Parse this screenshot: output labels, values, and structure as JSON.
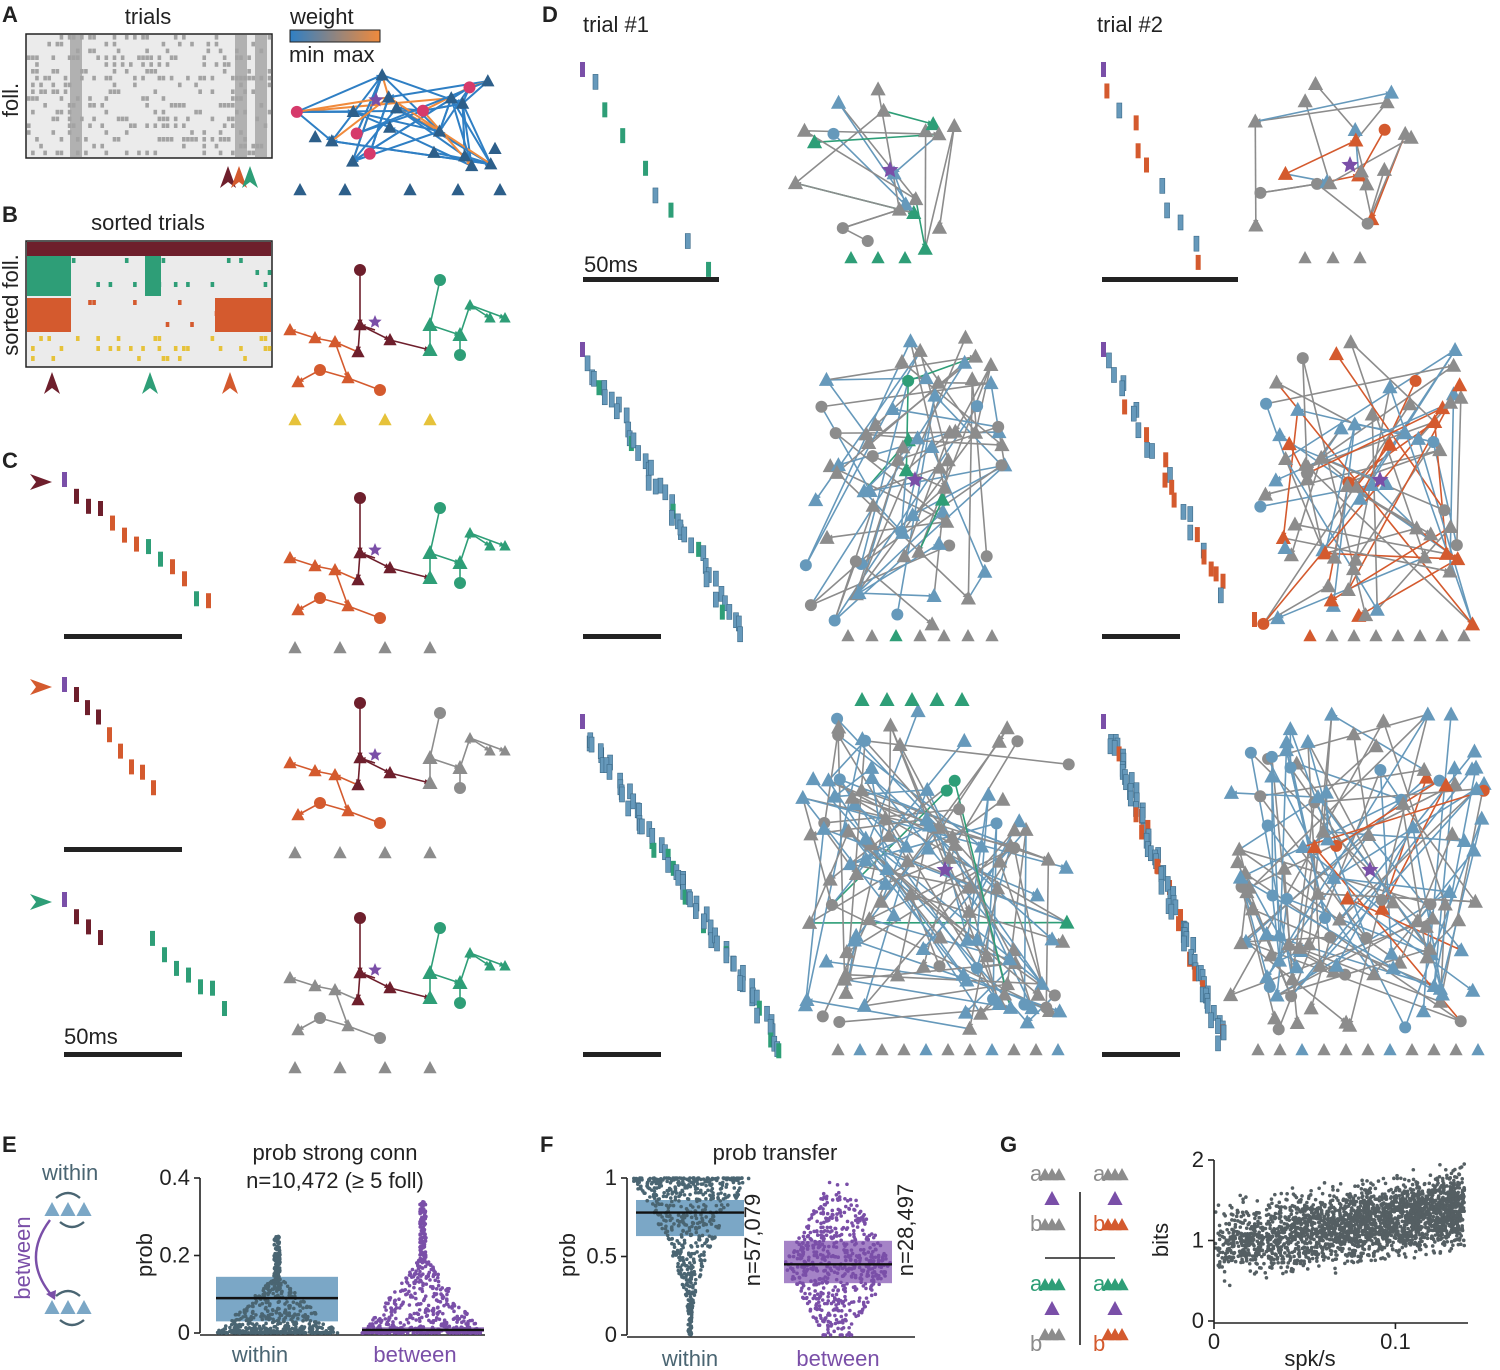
{
  "colors": {
    "gray": "#8c8c8c",
    "raster_bg": "#ebebeb",
    "raster_gray": "#a3a3a3",
    "purple": "#7a4fa8",
    "blue": "#6699bb",
    "green": "#2e9e77",
    "orange": "#d45a2e",
    "maroon": "#6e1f2c",
    "yellow": "#e6c23a",
    "pink": "#d63a6b",
    "dark_slate": "#4a6572",
    "box_blue": "#7ba7c6",
    "box_purple": "#a583c7",
    "weight_min": "#2f7fc4",
    "weight_max": "#f08a3c"
  },
  "panels": {
    "A": {
      "label": "A",
      "raster_title": "trials",
      "y_label": "foll.",
      "colorbar_title": "weight",
      "colorbar_min": "min",
      "colorbar_max": "max"
    },
    "B": {
      "label": "B",
      "raster_title": "sorted trials",
      "y_label": "sorted foll."
    },
    "C": {
      "label": "C",
      "scalebar_label": "50ms"
    },
    "D": {
      "label": "D",
      "col1_title": "trial #1",
      "col2_title": "trial #2",
      "scalebar_label": "50ms"
    },
    "E": {
      "label": "E",
      "diagram_within": "within",
      "diagram_between": "between",
      "title_line1": "prob strong conn",
      "title_line2": "n=10,472 (≥ 5 foll)",
      "ylabel": "prob",
      "cat_within": "within",
      "cat_between": "between"
    },
    "F": {
      "label": "F",
      "title": "prob transfer",
      "ylabel": "prob",
      "cat_within": "within",
      "cat_between": "between",
      "n_within": "n=57,079",
      "n_between": "n=28,497"
    },
    "G": {
      "label": "G",
      "xlabel": "spk/s",
      "ylabel": "bits",
      "letter_a": "a",
      "letter_b": "b"
    }
  },
  "chart_data": [
    {
      "type": "box",
      "panel": "E",
      "title": "prob strong conn",
      "subtitle": "n=10,472 (≥ 5 foll)",
      "ylabel": "prob",
      "categories": [
        "within",
        "between"
      ],
      "ylim": [
        0,
        0.4
      ],
      "yticks": [
        "0",
        "0.2",
        "0.4"
      ],
      "series": [
        {
          "name": "within",
          "q1": 0.03,
          "median": 0.09,
          "q3": 0.145,
          "max_outlier": 0.25
        },
        {
          "name": "between",
          "q1": 0.003,
          "median": 0.008,
          "q3": 0.015,
          "max_outlier": 0.34
        }
      ]
    },
    {
      "type": "box",
      "panel": "F",
      "title": "prob transfer",
      "ylabel": "prob",
      "categories": [
        "within",
        "between"
      ],
      "ylim": [
        0,
        1
      ],
      "yticks": [
        "0",
        "0.5",
        "1"
      ],
      "series": [
        {
          "name": "within",
          "n": "n=57,079",
          "q1": 0.63,
          "median": 0.78,
          "q3": 0.86
        },
        {
          "name": "between",
          "n": "n=28,497",
          "q1": 0.33,
          "median": 0.45,
          "q3": 0.6
        }
      ]
    },
    {
      "type": "scatter",
      "panel": "G",
      "xlabel": "spk/s",
      "ylabel": "bits",
      "xlim": [
        0,
        0.14
      ],
      "ylim": [
        0,
        2
      ],
      "xticks": [
        "0",
        "0.1"
      ],
      "yticks": [
        "0",
        "1",
        "2"
      ],
      "trend": [
        {
          "x": 0.0,
          "y": 0.95
        },
        {
          "x": 0.05,
          "y": 1.15
        },
        {
          "x": 0.1,
          "y": 1.35
        },
        {
          "x": 0.14,
          "y": 1.42
        }
      ]
    }
  ]
}
